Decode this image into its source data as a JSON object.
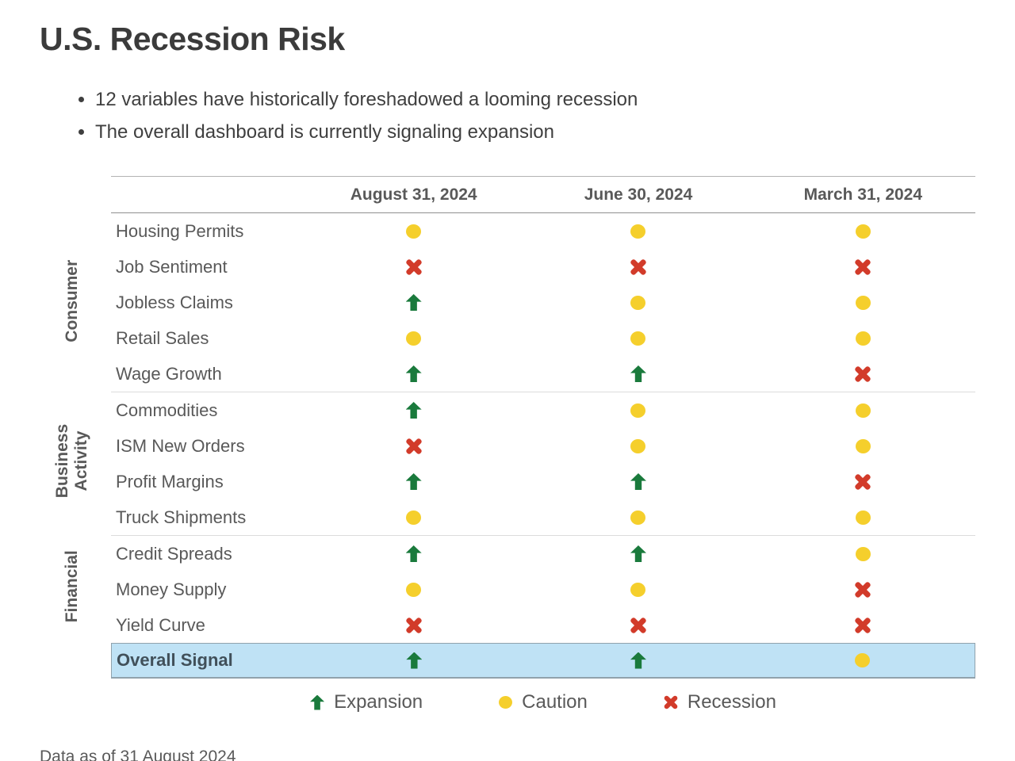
{
  "page": {
    "title": "U.S. Recession Risk",
    "bullets": [
      "12 variables have historically foreshadowed a looming recession",
      "The overall dashboard is currently signaling expansion"
    ],
    "footnote": "Data as of 31 August 2024"
  },
  "colors": {
    "expansion": "#1a7a3c",
    "caution": "#f5cf2c",
    "recession": "#d23b2a",
    "highlight": "#bfe2f5"
  },
  "chart_data": {
    "type": "table",
    "title": "U.S. Recession Risk",
    "columns": [
      "August 31, 2024",
      "June 30, 2024",
      "March 31, 2024"
    ],
    "legend": [
      "Expansion",
      "Caution",
      "Recession"
    ],
    "groups": [
      {
        "label": "Consumer",
        "display": "Consumer",
        "start": 0,
        "count": 5
      },
      {
        "label": "Business Activity",
        "display": "Business\nActivity",
        "start": 5,
        "count": 4
      },
      {
        "label": "Financial",
        "display": "Financial",
        "start": 9,
        "count": 3
      }
    ],
    "rows": [
      {
        "label": "Housing Permits",
        "signals": [
          "caution",
          "caution",
          "caution"
        ]
      },
      {
        "label": "Job Sentiment",
        "signals": [
          "recession",
          "recession",
          "recession"
        ]
      },
      {
        "label": "Jobless Claims",
        "signals": [
          "expansion",
          "caution",
          "caution"
        ]
      },
      {
        "label": "Retail Sales",
        "signals": [
          "caution",
          "caution",
          "caution"
        ]
      },
      {
        "label": "Wage Growth",
        "signals": [
          "expansion",
          "expansion",
          "recession"
        ]
      },
      {
        "label": "Commodities",
        "signals": [
          "expansion",
          "caution",
          "caution"
        ]
      },
      {
        "label": "ISM New Orders",
        "signals": [
          "recession",
          "caution",
          "caution"
        ]
      },
      {
        "label": "Profit Margins",
        "signals": [
          "expansion",
          "expansion",
          "recession"
        ]
      },
      {
        "label": "Truck Shipments",
        "signals": [
          "caution",
          "caution",
          "caution"
        ]
      },
      {
        "label": "Credit Spreads",
        "signals": [
          "expansion",
          "expansion",
          "caution"
        ]
      },
      {
        "label": "Money Supply",
        "signals": [
          "caution",
          "caution",
          "recession"
        ]
      },
      {
        "label": "Yield Curve",
        "signals": [
          "recession",
          "recession",
          "recession"
        ]
      }
    ],
    "overall": {
      "label": "Overall Signal",
      "signals": [
        "expansion",
        "expansion",
        "caution"
      ]
    }
  },
  "legend_items": [
    {
      "symbol": "expansion",
      "label": "Expansion"
    },
    {
      "symbol": "caution",
      "label": "Caution"
    },
    {
      "symbol": "recession",
      "label": "Recession"
    }
  ]
}
